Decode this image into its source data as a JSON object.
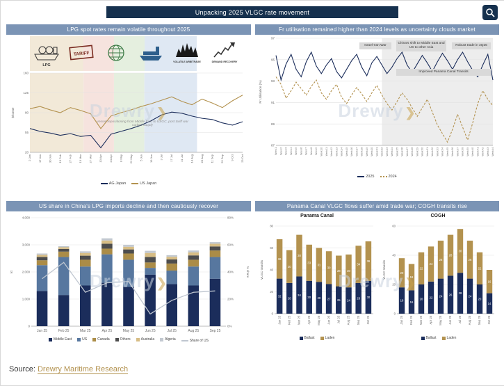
{
  "header": {
    "title": "Unpacking 2025 VLGC rate movement"
  },
  "watermark": "Drewry",
  "source": {
    "prefix": "Source:",
    "name": "Drewry Maritime Research"
  },
  "panels": {
    "lpg": {
      "title": "LPG spot rates remain volatile throughout 2025",
      "icons": {
        "lpg_label": "LPG",
        "tariff_label": "TARIFF",
        "volatile_label": "VOLATILE ARBITRAGE",
        "demand_label": "DEMAND RECOVERY"
      },
      "annotation": "Vessel repositioning from Middle East to USGC, post tariff war curbed supply"
    },
    "fr": {
      "title": "Fr utilisation remained higher than 2024 levels as uncertainty clouds market",
      "annotations": [
        "Israel-Iran War",
        "China's shift to Middle East and US to other Asia",
        "Robust trade in 3Q25",
        "Improved Panama Canal Transits"
      ]
    },
    "us_share": {
      "title": "US share in China's LPG imports decline and then cautiously recover"
    },
    "panama": {
      "title": "Panama Canal VLGC flows suffer amid trade war; COGH transits rise"
    }
  },
  "chart_data": [
    {
      "id": "lpg_rates",
      "type": "line",
      "title": "LPG spot rates remain volatile throughout 2025",
      "ylabel": "$/tonne",
      "ylim": [
        20,
        160
      ],
      "yticks": [
        20,
        55,
        90,
        125,
        160
      ],
      "x": [
        "2 Jan",
        "17 Jan",
        "30 Jan",
        "13 Feb",
        "27 Feb",
        "13 Mar",
        "27 Mar",
        "10 Apr",
        "24 Apr",
        "8 May",
        "22 May",
        "5 Jun",
        "19 Jun",
        "3 Jul",
        "17 Jul",
        "31 Jul",
        "14 Aug",
        "28 Aug",
        "11 Sep",
        "25 Sep",
        "9 Oct",
        "23 Oct"
      ],
      "bands": [
        {
          "x0": 0,
          "x1": 5.3,
          "color": "#f2e9d8"
        },
        {
          "x0": 5.3,
          "x1": 8.3,
          "color": "#f6e3de"
        },
        {
          "x0": 8.3,
          "x1": 11.3,
          "color": "#e5efdf"
        },
        {
          "x0": 11.3,
          "x1": 16.5,
          "color": "#dfe8f3"
        }
      ],
      "series": [
        {
          "name": "AG Japan",
          "color": "#1b2d5b",
          "values": [
            62,
            57,
            54,
            50,
            53,
            48,
            50,
            28,
            52,
            57,
            62,
            68,
            76,
            86,
            91,
            89,
            84,
            80,
            78,
            72,
            68,
            74
          ]
        },
        {
          "name": "US Japan",
          "color": "#b3924f",
          "values": [
            97,
            101,
            95,
            90,
            99,
            94,
            88,
            62,
            84,
            90,
            95,
            101,
            106,
            112,
            118,
            110,
            104,
            114,
            107,
            99,
            111,
            121
          ]
        }
      ]
    },
    {
      "id": "fr_utilisation",
      "type": "line",
      "title": "Fr utilisation remained higher than 2024 levels as uncertainty clouds market",
      "ylabel": "Fr Utilisation (%)",
      "ylim": [
        87,
        97
      ],
      "yticks": [
        87,
        89,
        91,
        93,
        95,
        97
      ],
      "x": [
        "Week 1",
        "Week 2",
        "Week 3",
        "Week 4",
        "Week 5",
        "Week 6",
        "Week 7",
        "Week 8",
        "Week 9",
        "Week 10",
        "Week 11",
        "Week 12",
        "Week 13",
        "Week 14",
        "Week 15",
        "Week 16",
        "Week 17",
        "Week 18",
        "Week 19",
        "Week 20",
        "Week 21",
        "Week 22",
        "Week 23",
        "Week 24",
        "Week 25",
        "Week 26",
        "Week 27",
        "Week 28",
        "Week 29",
        "Week 30",
        "Week 31",
        "Week 32",
        "Week 33",
        "Week 34",
        "Week 35",
        "Week 36",
        "Week 37",
        "Week 38",
        "Week 39",
        "Week 40",
        "Week 41",
        "Week 42",
        "Week 43",
        "Week 44"
      ],
      "bands": [
        {
          "x0": 21,
          "x1": 43,
          "color": "#ededed"
        }
      ],
      "series": [
        {
          "name": "2025",
          "color": "#1b2d5b",
          "values": [
            95.4,
            93.1,
            94.6,
            95.5,
            94.1,
            93.4,
            94.8,
            95.7,
            94.4,
            93.7,
            94.5,
            95.1,
            93.9,
            93.3,
            94.1,
            94.9,
            95.5,
            94.3,
            93.5,
            94.7,
            95.3,
            94.5,
            93.7,
            94.3,
            95.1,
            95.7,
            94.5,
            93.8,
            94.6,
            95.4,
            94.7,
            93.9,
            94.8,
            95.6,
            94.9,
            94.1,
            95.0,
            95.7,
            94.8,
            94.0,
            93.4,
            94.5,
            95.5,
            93.1
          ]
        },
        {
          "name": "2024",
          "color": "#b3924f",
          "dash": true,
          "values": [
            93.4,
            92.7,
            91.4,
            92.1,
            92.9,
            92.3,
            91.7,
            92.5,
            93.1,
            91.9,
            91.3,
            92.1,
            92.7,
            91.5,
            90.9,
            91.7,
            92.4,
            91.8,
            91.1,
            91.9,
            92.6,
            91.7,
            90.9,
            90.3,
            91.1,
            91.9,
            91.3,
            90.5,
            89.7,
            90.5,
            91.3,
            90.1,
            88.9,
            88.1,
            87.3,
            88.5,
            89.9,
            88.7,
            87.5,
            89.1,
            90.9,
            92.1,
            91.3,
            90.7
          ]
        }
      ]
    },
    {
      "id": "china_imports",
      "type": "bar",
      "title": "US share in China's LPG imports decline and then cautiously recover",
      "ylabel": "kt",
      "ylim": [
        0,
        4000
      ],
      "yticks": [
        0,
        1000,
        2000,
        3000,
        4000
      ],
      "ytick_labels": [
        "0",
        "1,000",
        "2,000",
        "3,000",
        "4,000"
      ],
      "categories": [
        "Jan 25",
        "Feb 25",
        "Mar 25",
        "Apr 25",
        "May 25",
        "Jun 25",
        "Jul 25",
        "Aug 25",
        "Sep 25"
      ],
      "series": [
        {
          "name": "Middle East",
          "color": "#1b2d5b",
          "values": [
            1300,
            1150,
            1500,
            1600,
            1450,
            1900,
            1550,
            1500,
            1750
          ]
        },
        {
          "name": "US",
          "color": "#57779f",
          "values": [
            950,
            1400,
            700,
            1050,
            1000,
            250,
            500,
            700,
            800
          ]
        },
        {
          "name": "Canada",
          "color": "#ab8c47",
          "values": [
            180,
            200,
            250,
            210,
            230,
            200,
            260,
            250,
            240
          ]
        },
        {
          "name": "Others",
          "color": "#4d4d4d",
          "values": [
            120,
            100,
            150,
            180,
            150,
            200,
            150,
            160,
            150
          ]
        },
        {
          "name": "Australia",
          "color": "#d7bd85",
          "values": [
            80,
            60,
            100,
            120,
            100,
            150,
            100,
            110,
            100
          ]
        },
        {
          "name": "Algeria",
          "color": "#c3c9d1",
          "values": [
            50,
            40,
            60,
            80,
            70,
            80,
            60,
            70,
            60
          ]
        }
      ],
      "line": {
        "name": "Share of US",
        "color": "#bfc6d0",
        "ylabel": "% share",
        "ylim": [
          0,
          80
        ],
        "yticks": [
          0,
          20,
          40,
          60,
          80
        ],
        "ytick_labels": [
          "0%",
          "20%",
          "40%",
          "60%",
          "80%"
        ],
        "values": [
          35,
          47,
          25,
          32,
          33,
          9,
          19,
          25,
          26
        ]
      }
    },
    {
      "id": "panama_canal",
      "type": "bar",
      "title": "Panama Canal",
      "ylabel": "VLGC transits",
      "ylim": [
        0,
        80
      ],
      "yticks": [
        0,
        20,
        40,
        60,
        80
      ],
      "value_labels": true,
      "categories": [
        "Jan 25",
        "Feb 25",
        "Mar 25",
        "Apr 25",
        "May 25",
        "Jun 25",
        "Jul 25",
        "Aug 25",
        "Sep 25",
        "Oct 25"
      ],
      "series": [
        {
          "name": "Ballast",
          "color": "#1b2d5b",
          "values": [
            32,
            28,
            34,
            30,
            29,
            27,
            25,
            24,
            28,
            30
          ]
        },
        {
          "name": "Laden",
          "color": "#b3924f",
          "values": [
            36,
            30,
            38,
            33,
            31,
            30,
            28,
            30,
            34,
            36
          ]
        }
      ]
    },
    {
      "id": "cogh",
      "type": "bar",
      "title": "COGH",
      "ylabel": "VLGC transits",
      "ylim": [
        0,
        60
      ],
      "yticks": [
        0,
        20,
        40,
        60
      ],
      "value_labels": true,
      "categories": [
        "Jan 25",
        "Feb 25",
        "Mar 25",
        "Apr 25",
        "May 25",
        "Jun 25",
        "Jul 25",
        "Aug 25",
        "Sep 25",
        "Oct 25"
      ],
      "series": [
        {
          "name": "Ballast",
          "color": "#1b2d5b",
          "values": [
            18,
            16,
            20,
            22,
            24,
            26,
            28,
            24,
            20,
            14
          ]
        },
        {
          "name": "Laden",
          "color": "#b3924f",
          "values": [
            20,
            18,
            22,
            24,
            26,
            28,
            30,
            26,
            22,
            16
          ]
        }
      ]
    }
  ]
}
